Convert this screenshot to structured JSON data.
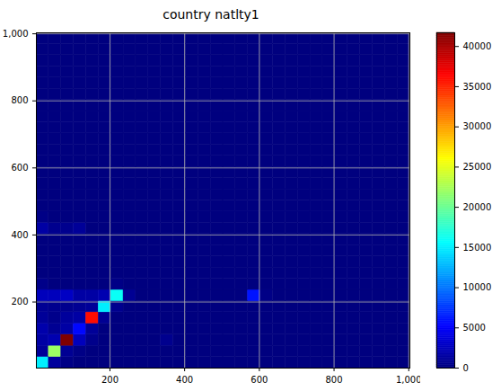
{
  "chart_data": {
    "type": "hist2d",
    "title": "country natlty1",
    "xlim": [
      3,
      1003
    ],
    "ylim": [
      3,
      1003
    ],
    "xticks": [
      200,
      400,
      600,
      800,
      1000
    ],
    "yticks": [
      200,
      400,
      600,
      800,
      1000
    ],
    "grid": true,
    "xbins": [
      3,
      36.33,
      69.67,
      103,
      136.33,
      169.67,
      203,
      236.33,
      269.67,
      303,
      336.33,
      369.67,
      403,
      436.33,
      469.67,
      503,
      536.33,
      569.67,
      603,
      636.33,
      669.67,
      703,
      736.33,
      769.67,
      803,
      836.33,
      869.67,
      903,
      936.33,
      969.67,
      1003
    ],
    "ybins": [
      3,
      36.33,
      69.67,
      103,
      136.33,
      169.67,
      203,
      236.33,
      269.67,
      303,
      336.33,
      369.67,
      403,
      436.33,
      469.67,
      503,
      536.33,
      569.67,
      603,
      636.33,
      669.67,
      703,
      736.33,
      769.67,
      803,
      836.33,
      869.67,
      903,
      936.33,
      969.67,
      1003
    ],
    "counts": [
      [
        15000,
        1200,
        300,
        0,
        0,
        0,
        0,
        0,
        0,
        0,
        0,
        0,
        0,
        0,
        0,
        0,
        0,
        0,
        0,
        0,
        0,
        0,
        0,
        0,
        0,
        0,
        0,
        0,
        0,
        0
      ],
      [
        1000,
        22000,
        800,
        300,
        0,
        0,
        0,
        0,
        0,
        0,
        0,
        0,
        0,
        0,
        0,
        0,
        0,
        0,
        0,
        0,
        0,
        0,
        0,
        0,
        0,
        0,
        0,
        0,
        0,
        0
      ],
      [
        1500,
        2000,
        41700,
        2500,
        500,
        0,
        0,
        0,
        0,
        0,
        600,
        0,
        0,
        0,
        0,
        0,
        0,
        0,
        0,
        0,
        0,
        0,
        0,
        0,
        0,
        0,
        0,
        0,
        0,
        0
      ],
      [
        1800,
        800,
        1500,
        5500,
        1000,
        0,
        0,
        0,
        0,
        0,
        0,
        0,
        0,
        0,
        0,
        0,
        0,
        0,
        0,
        0,
        0,
        0,
        0,
        0,
        0,
        0,
        0,
        0,
        0,
        0
      ],
      [
        1000,
        500,
        1200,
        1500,
        36000,
        800,
        0,
        0,
        0,
        0,
        0,
        0,
        0,
        0,
        0,
        0,
        0,
        0,
        0,
        0,
        0,
        0,
        0,
        0,
        0,
        0,
        0,
        0,
        0,
        0
      ],
      [
        800,
        600,
        600,
        800,
        1000,
        15000,
        600,
        0,
        0,
        0,
        0,
        0,
        0,
        0,
        0,
        0,
        0,
        0,
        0,
        0,
        0,
        0,
        0,
        0,
        0,
        0,
        0,
        0,
        0,
        0
      ],
      [
        2500,
        2500,
        2800,
        1500,
        1500,
        2000,
        16000,
        800,
        0,
        0,
        0,
        0,
        0,
        0,
        0,
        0,
        0,
        6000,
        300,
        0,
        0,
        0,
        0,
        0,
        0,
        0,
        0,
        0,
        0,
        0
      ],
      [
        400,
        0,
        0,
        0,
        0,
        0,
        300,
        0,
        0,
        0,
        0,
        0,
        0,
        0,
        0,
        0,
        0,
        0,
        0,
        0,
        0,
        0,
        0,
        0,
        0,
        0,
        0,
        0,
        0,
        0
      ],
      [
        0,
        0,
        0,
        0,
        0,
        0,
        0,
        0,
        0,
        0,
        0,
        0,
        0,
        0,
        0,
        0,
        0,
        0,
        0,
        0,
        0,
        0,
        0,
        0,
        0,
        0,
        0,
        0,
        0,
        0
      ],
      [
        0,
        0,
        0,
        0,
        0,
        0,
        0,
        0,
        0,
        0,
        0,
        0,
        0,
        0,
        0,
        0,
        0,
        0,
        0,
        0,
        0,
        0,
        0,
        0,
        0,
        0,
        0,
        0,
        0,
        0
      ],
      [
        0,
        0,
        0,
        0,
        0,
        0,
        0,
        0,
        0,
        0,
        0,
        0,
        0,
        0,
        0,
        0,
        0,
        0,
        0,
        0,
        0,
        0,
        0,
        0,
        0,
        0,
        0,
        0,
        0,
        0
      ],
      [
        0,
        0,
        0,
        0,
        0,
        0,
        0,
        0,
        0,
        0,
        0,
        0,
        0,
        0,
        0,
        0,
        0,
        0,
        0,
        0,
        0,
        0,
        0,
        0,
        0,
        0,
        0,
        0,
        0,
        0
      ],
      [
        1500,
        600,
        600,
        1000,
        0,
        0,
        0,
        0,
        0,
        0,
        0,
        0,
        0,
        0,
        0,
        0,
        0,
        0,
        0,
        0,
        0,
        0,
        0,
        0,
        0,
        0,
        0,
        0,
        0,
        0
      ],
      [
        300,
        0,
        0,
        0,
        0,
        0,
        0,
        0,
        0,
        0,
        0,
        0,
        0,
        0,
        0,
        0,
        0,
        0,
        0,
        0,
        0,
        0,
        0,
        0,
        0,
        0,
        0,
        0,
        0,
        0
      ],
      [
        0,
        0,
        0,
        0,
        0,
        0,
        0,
        0,
        0,
        0,
        0,
        0,
        0,
        0,
        0,
        0,
        0,
        0,
        0,
        0,
        0,
        0,
        0,
        0,
        0,
        0,
        0,
        0,
        0,
        0
      ],
      [
        0,
        0,
        0,
        0,
        0,
        0,
        0,
        0,
        0,
        0,
        0,
        0,
        0,
        0,
        0,
        0,
        0,
        0,
        0,
        0,
        0,
        0,
        0,
        0,
        0,
        0,
        0,
        0,
        0,
        0
      ],
      [
        0,
        0,
        0,
        0,
        0,
        0,
        0,
        0,
        0,
        0,
        0,
        0,
        0,
        0,
        0,
        0,
        0,
        0,
        0,
        0,
        0,
        0,
        0,
        0,
        0,
        0,
        0,
        0,
        0,
        0
      ],
      [
        0,
        0,
        0,
        0,
        0,
        0,
        0,
        0,
        0,
        0,
        0,
        0,
        0,
        0,
        0,
        0,
        0,
        0,
        0,
        0,
        0,
        0,
        0,
        0,
        0,
        0,
        0,
        0,
        0,
        0
      ],
      [
        0,
        0,
        0,
        0,
        0,
        0,
        0,
        0,
        0,
        0,
        0,
        0,
        0,
        0,
        0,
        0,
        0,
        0,
        0,
        0,
        0,
        0,
        0,
        0,
        0,
        0,
        0,
        0,
        0,
        0
      ],
      [
        0,
        0,
        0,
        0,
        0,
        0,
        0,
        0,
        0,
        0,
        0,
        0,
        0,
        0,
        0,
        0,
        0,
        0,
        0,
        0,
        0,
        0,
        0,
        0,
        0,
        0,
        0,
        0,
        0,
        0
      ],
      [
        0,
        0,
        0,
        0,
        0,
        0,
        0,
        0,
        0,
        0,
        0,
        0,
        0,
        0,
        0,
        0,
        0,
        0,
        0,
        0,
        0,
        0,
        0,
        0,
        0,
        0,
        0,
        0,
        0,
        0
      ],
      [
        0,
        0,
        0,
        0,
        0,
        0,
        0,
        0,
        0,
        0,
        0,
        0,
        0,
        0,
        0,
        0,
        0,
        0,
        0,
        0,
        0,
        0,
        0,
        0,
        0,
        0,
        0,
        0,
        0,
        0
      ],
      [
        0,
        0,
        0,
        0,
        0,
        0,
        0,
        0,
        0,
        0,
        0,
        0,
        0,
        0,
        0,
        0,
        0,
        0,
        0,
        0,
        0,
        0,
        0,
        0,
        0,
        0,
        0,
        0,
        0,
        0
      ],
      [
        0,
        0,
        0,
        0,
        0,
        0,
        0,
        0,
        0,
        0,
        0,
        0,
        0,
        0,
        0,
        0,
        0,
        0,
        0,
        0,
        0,
        0,
        0,
        0,
        0,
        0,
        0,
        0,
        0,
        0
      ],
      [
        0,
        0,
        0,
        0,
        0,
        0,
        0,
        0,
        0,
        0,
        0,
        0,
        0,
        0,
        0,
        0,
        0,
        0,
        0,
        0,
        0,
        0,
        0,
        0,
        0,
        0,
        0,
        0,
        0,
        0
      ],
      [
        0,
        0,
        0,
        0,
        0,
        0,
        0,
        0,
        0,
        0,
        0,
        0,
        0,
        0,
        0,
        0,
        0,
        0,
        0,
        0,
        0,
        0,
        0,
        0,
        0,
        0,
        0,
        0,
        0,
        0
      ],
      [
        0,
        0,
        0,
        0,
        0,
        0,
        0,
        0,
        0,
        0,
        0,
        0,
        0,
        0,
        0,
        0,
        0,
        0,
        0,
        0,
        0,
        0,
        0,
        0,
        0,
        0,
        0,
        0,
        0,
        0
      ],
      [
        0,
        0,
        0,
        0,
        0,
        0,
        0,
        0,
        0,
        0,
        0,
        0,
        0,
        0,
        0,
        0,
        0,
        0,
        0,
        0,
        0,
        0,
        0,
        0,
        0,
        0,
        0,
        0,
        0,
        0
      ],
      [
        0,
        0,
        0,
        0,
        0,
        0,
        0,
        0,
        0,
        0,
        0,
        0,
        0,
        0,
        0,
        0,
        0,
        0,
        0,
        0,
        0,
        0,
        0,
        0,
        0,
        0,
        0,
        0,
        0,
        0
      ],
      [
        0,
        0,
        0,
        0,
        0,
        0,
        0,
        0,
        0,
        0,
        0,
        0,
        0,
        0,
        0,
        0,
        0,
        0,
        0,
        0,
        0,
        0,
        0,
        0,
        0,
        0,
        0,
        0,
        0,
        0
      ]
    ],
    "colorbar": {
      "range": [
        0,
        41700
      ],
      "ticks": [
        0,
        5000,
        10000,
        15000,
        20000,
        25000,
        30000,
        35000,
        40000
      ]
    }
  }
}
